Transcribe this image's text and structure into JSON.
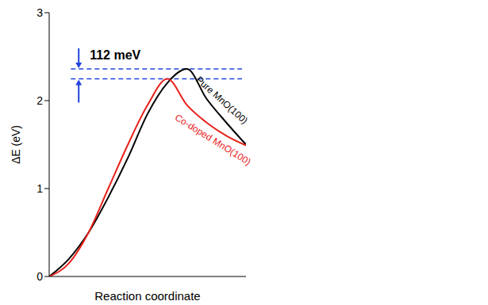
{
  "chart_data": {
    "type": "line",
    "x_label": "Reaction coordinate",
    "y_label": "ΔE (eV)",
    "x": [
      0,
      1,
      2,
      3,
      4,
      5,
      6,
      7,
      8,
      9,
      10
    ],
    "series": [
      {
        "name": "Pure MnO(100)",
        "color": "#000000",
        "values": [
          0,
          0.2,
          0.5,
          0.9,
          1.35,
          1.85,
          2.2,
          2.36,
          2.02,
          1.75,
          1.5
        ]
      },
      {
        "name": "Co-doped MnO(100)",
        "color": "#e8221b",
        "values": [
          0,
          0.15,
          0.5,
          1.0,
          1.5,
          1.95,
          2.248,
          1.95,
          1.75,
          1.6,
          1.49
        ]
      }
    ],
    "reference_lines": [
      2.36,
      2.248
    ],
    "reference_line_color": "#2244dd",
    "annotations": [
      {
        "text": "112 meV"
      }
    ],
    "xlim": [
      0,
      10
    ],
    "ylim": [
      0,
      3
    ],
    "yticks": [
      0,
      1,
      2,
      3
    ],
    "tick_labels": "y",
    "grid": false
  }
}
